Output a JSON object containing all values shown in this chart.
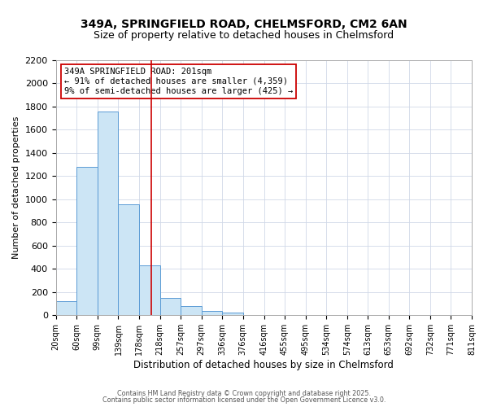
{
  "title1": "349A, SPRINGFIELD ROAD, CHELMSFORD, CM2 6AN",
  "title2": "Size of property relative to detached houses in Chelmsford",
  "xlabel": "Distribution of detached houses by size in Chelmsford",
  "ylabel": "Number of detached properties",
  "bar_edges": [
    20,
    60,
    99,
    139,
    178,
    218,
    257,
    297,
    336,
    376,
    416,
    455,
    495,
    534,
    574,
    613,
    653,
    692,
    732,
    771,
    811
  ],
  "bar_heights": [
    120,
    1280,
    1760,
    960,
    430,
    150,
    80,
    40,
    20,
    0,
    0,
    0,
    0,
    0,
    0,
    0,
    0,
    0,
    0,
    0
  ],
  "bar_color": "#cce5f5",
  "bar_edge_color": "#5b9bd5",
  "vline_x": 201,
  "vline_color": "#cc0000",
  "ylim": [
    0,
    2200
  ],
  "yticks": [
    0,
    200,
    400,
    600,
    800,
    1000,
    1200,
    1400,
    1600,
    1800,
    2000,
    2200
  ],
  "annotation_line1": "349A SPRINGFIELD ROAD: 201sqm",
  "annotation_line2": "← 91% of detached houses are smaller (4,359)",
  "annotation_line3": "9% of semi-detached houses are larger (425) →",
  "footer1": "Contains HM Land Registry data © Crown copyright and database right 2025.",
  "footer2": "Contains public sector information licensed under the Open Government Licence v3.0.",
  "grid_color": "#d0d8e8",
  "title_fontsize": 10,
  "subtitle_fontsize": 9,
  "tick_label_fontsize": 7,
  "ylabel_fontsize": 8,
  "xlabel_fontsize": 8.5
}
